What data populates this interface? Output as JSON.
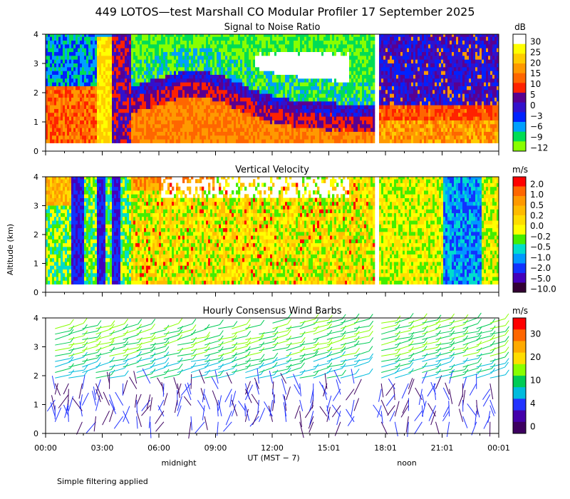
{
  "title": "449 LOTOS—test Marshall CO Modular Profiler 17 September 2025",
  "footnote": "Simple filtering applied",
  "y_axis_label": "Altitude (km)",
  "x_axis": {
    "ticks": [
      "00:00",
      "03:00",
      "06:00",
      "09:00",
      "12:00",
      "15:01",
      "18:01",
      "21:01",
      "00:01"
    ],
    "label": "UT  (MST − 7)",
    "markers": [
      "midnight",
      "noon"
    ]
  },
  "chart_data": [
    {
      "type": "heatmap",
      "title": "Signal to Noise Ratio",
      "xlabel": "UT (MST - 7)",
      "ylabel": "Altitude (km)",
      "xlim_hours": [
        0,
        24
      ],
      "ylim": [
        0,
        4
      ],
      "y_ticks": [
        "0",
        "1",
        "2",
        "3",
        "4"
      ],
      "colorbar": {
        "unit": "dB",
        "labels": [
          "30",
          "25",
          "20",
          "15",
          "10",
          "5",
          "0",
          "−3",
          "−6",
          "−9",
          "−12"
        ],
        "colors": [
          "#ffffff",
          "#ffff00",
          "#ffcc00",
          "#ff9900",
          "#ff6600",
          "#ff2200",
          "#5a0090",
          "#3311cc",
          "#0022ff",
          "#00a0ff",
          "#00dd55",
          "#88ff00"
        ]
      },
      "data_gaps_hours": [
        [
          17.4,
          17.6
        ]
      ]
    },
    {
      "type": "heatmap",
      "title": "Vertical Velocity",
      "xlabel": "UT (MST - 7)",
      "ylabel": "Altitude (km)",
      "xlim_hours": [
        0,
        24
      ],
      "ylim": [
        0,
        4
      ],
      "y_ticks": [
        "0",
        "1",
        "2",
        "3",
        "4"
      ],
      "colorbar": {
        "unit": "m/s",
        "labels": [
          "2.0",
          "1.0",
          "0.5",
          "0.2",
          "0.0",
          "−0.2",
          "−0.5",
          "−1.0",
          "−2.0",
          "−5.0",
          "−10.0"
        ],
        "colors": [
          "#ff0000",
          "#ff6600",
          "#ff9900",
          "#ffbb00",
          "#ffdd00",
          "#ffff00",
          "#44ee00",
          "#00ddcc",
          "#0099ff",
          "#1133ff",
          "#4400bb",
          "#330033"
        ]
      },
      "data_gaps_hours": [
        [
          17.4,
          17.6
        ]
      ]
    },
    {
      "type": "scatter",
      "title": "Hourly Consensus Wind Barbs",
      "xlabel": "UT (MST - 7)",
      "ylabel": "Altitude (km)",
      "xlim_hours": [
        0,
        24
      ],
      "ylim": [
        0,
        4
      ],
      "y_ticks": [
        "0",
        "1",
        "2",
        "3",
        "4"
      ],
      "colorbar": {
        "unit": "m/s",
        "labels": [
          "30",
          "20",
          "10",
          "4",
          "0"
        ],
        "colors": [
          "#ff0000",
          "#ff6600",
          "#ffaa00",
          "#ffdd00",
          "#88ff00",
          "#00cc55",
          "#00bbdd",
          "#2233ff",
          "#4400aa",
          "#3d0060"
        ]
      }
    }
  ]
}
